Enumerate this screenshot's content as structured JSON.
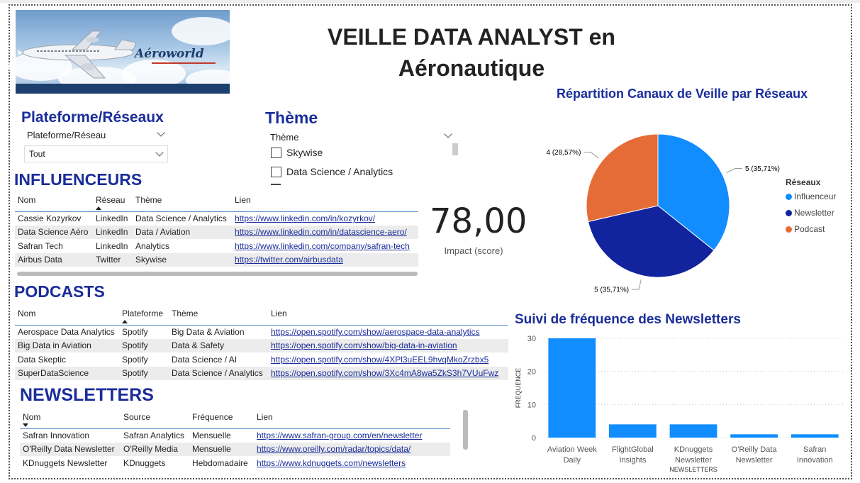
{
  "header": {
    "title": "VEILLE  DATA ANALYST en Aéronautique",
    "logo_text": "Aéroworld"
  },
  "slicers": {
    "platform": {
      "heading": "Plateforme/Réseaux",
      "label": "Plateforme/Réseau",
      "value": "Tout"
    },
    "theme": {
      "heading": "Thème",
      "label": "Thème",
      "options": [
        "Skywise",
        "Data Science / Analytics"
      ]
    }
  },
  "influenceurs": {
    "heading": "INFLUENCEURS",
    "columns": [
      "Nom",
      "Réseau",
      "Thème",
      "Lien"
    ],
    "rows": [
      [
        "Cassie Kozyrkov",
        "LinkedIn",
        "Data Science / Analytics",
        "https://www.linkedin.com/in/kozyrkov/"
      ],
      [
        "Data Science Aéro",
        "LinkedIn",
        "Data / Aviation",
        "https://www.linkedin.com/in/datascience-aero/"
      ],
      [
        "Safran Tech",
        "LinkedIn",
        "Analytics",
        "https://www.linkedin.com/company/safran-tech"
      ],
      [
        "Airbus Data",
        "Twitter",
        "Skywise",
        "https://twitter.com/airbusdata"
      ]
    ]
  },
  "kpi": {
    "value": "78,00",
    "label": "Impact (score)"
  },
  "podcasts": {
    "heading": "PODCASTS",
    "columns": [
      "Nom",
      "Plateforme",
      "Thème",
      "Lien"
    ],
    "rows": [
      [
        "Aerospace Data Analytics",
        "Spotify",
        "Big Data & Aviation",
        "https://open.spotify.com/show/aerospace-data-analytics"
      ],
      [
        "Big Data in Aviation",
        "Spotify",
        "Data & Safety",
        "https://open.spotify.com/show/big-data-in-aviation"
      ],
      [
        "Data Skeptic",
        "Spotify",
        "Data Science / AI",
        "https://open.spotify.com/show/4XPl3uEEL9hvqMkoZrzbx5"
      ],
      [
        "SuperDataScience",
        "Spotify",
        "Data Science / Analytics",
        "https://open.spotify.com/show/3Xc4mA8wa5ZkS3h7VUuFwz"
      ]
    ]
  },
  "newsletters": {
    "heading": "NEWSLETTERS",
    "columns": [
      "Nom",
      "Source",
      "Fréquence",
      "Lien"
    ],
    "rows": [
      [
        "Safran Innovation",
        "Safran Analytics",
        "Mensuelle",
        "https://www.safran-group.com/en/newsletter"
      ],
      [
        "O'Reilly Data Newsletter",
        "O'Reilly Media",
        "Mensuelle",
        "https://www.oreilly.com/radar/topics/data/"
      ],
      [
        "KDnuggets Newsletter",
        "KDnuggets",
        "Hebdomadaire",
        "https://www.kdnuggets.com/newsletters"
      ]
    ]
  },
  "chart_data": [
    {
      "type": "pie",
      "title": "Répartition Canaux de Veille par Réseaux",
      "legend_title": "Réseaux",
      "legend_position": "right",
      "slices": [
        {
          "name": "Influenceur",
          "value": 5,
          "label": "5 (35,71%)",
          "color": "#118DFF"
        },
        {
          "name": "Newsletter",
          "value": 5,
          "label": "5 (35,71%)",
          "color": "#12239E"
        },
        {
          "name": "Podcast",
          "value": 4,
          "label": "4 (28,57%)",
          "color": "#E66C37"
        }
      ]
    },
    {
      "type": "bar",
      "title": "Suivi de fréquence des Newsletters",
      "xlabel": "NEWSLETTERS",
      "ylabel": "FREQUENCE",
      "ylim": [
        0,
        30
      ],
      "yticks": [
        0,
        10,
        20,
        30
      ],
      "grid": true,
      "color": "#118DFF",
      "categories": [
        "Aviation Week Daily",
        "FlightGlobal Insights",
        "KDnuggets Newsletter",
        "O'Reilly Data Newsletter",
        "Safran Innovation"
      ],
      "category_lines": [
        [
          "Aviation Week",
          "Daily"
        ],
        [
          "FlightGlobal",
          "Insights"
        ],
        [
          "KDnuggets",
          "Newsletter"
        ],
        [
          "O'Reilly Data",
          "Newsletter"
        ],
        [
          "Safran",
          "Innovation"
        ]
      ],
      "values": [
        30,
        4,
        4,
        1,
        1
      ]
    }
  ]
}
